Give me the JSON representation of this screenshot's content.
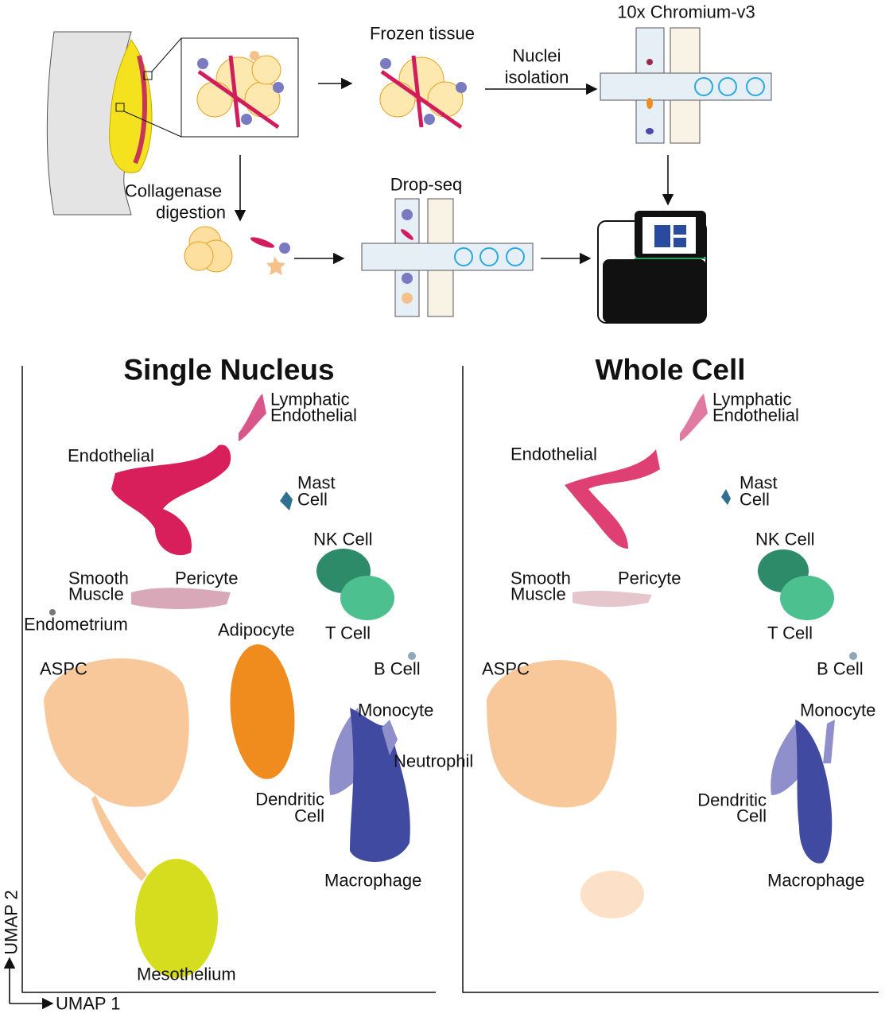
{
  "workflow": {
    "frozen": "Frozen tissue",
    "platform": "10x Chromium-v3",
    "nuclei": [
      "Nuclei",
      "isolation"
    ],
    "collagenase": [
      "Collagenase",
      "digestion"
    ],
    "dropseq": "Drop-seq"
  },
  "panels": [
    {
      "title": "Single Nucleus",
      "clusters": [
        {
          "lines": [
            "Lymphatic",
            "Endothelial"
          ]
        },
        {
          "lines": [
            "Endothelial"
          ]
        },
        {
          "lines": [
            "Mast",
            "Cell"
          ]
        },
        {
          "lines": [
            "NK Cell"
          ]
        },
        {
          "lines": [
            "Smooth",
            "Muscle"
          ]
        },
        {
          "lines": [
            "Pericyte"
          ]
        },
        {
          "lines": [
            "Endometrium"
          ]
        },
        {
          "lines": [
            "Adipocyte"
          ]
        },
        {
          "lines": [
            "T Cell"
          ]
        },
        {
          "lines": [
            "ASPC"
          ]
        },
        {
          "lines": [
            "B Cell"
          ]
        },
        {
          "lines": [
            "Monocyte"
          ]
        },
        {
          "lines": [
            "Neutrophil"
          ]
        },
        {
          "lines": [
            "Dendritic",
            "Cell"
          ]
        },
        {
          "lines": [
            "Macrophage"
          ]
        },
        {
          "lines": [
            "Mesothelium"
          ]
        }
      ]
    },
    {
      "title": "Whole Cell",
      "clusters": [
        {
          "lines": [
            "Lymphatic",
            "Endothelial"
          ]
        },
        {
          "lines": [
            "Endothelial"
          ]
        },
        {
          "lines": [
            "Mast",
            "Cell"
          ]
        },
        {
          "lines": [
            "NK Cell"
          ]
        },
        {
          "lines": [
            "Smooth",
            "Muscle"
          ]
        },
        {
          "lines": [
            "Pericyte"
          ]
        },
        {
          "lines": [
            "T Cell"
          ]
        },
        {
          "lines": [
            "ASPC"
          ]
        },
        {
          "lines": [
            "B Cell"
          ]
        },
        {
          "lines": [
            "Monocyte"
          ]
        },
        {
          "lines": [
            "Dendritic",
            "Cell"
          ]
        },
        {
          "lines": [
            "Macrophage"
          ]
        }
      ]
    }
  ],
  "axes": {
    "x": "UMAP 1",
    "y": "UMAP 2"
  }
}
